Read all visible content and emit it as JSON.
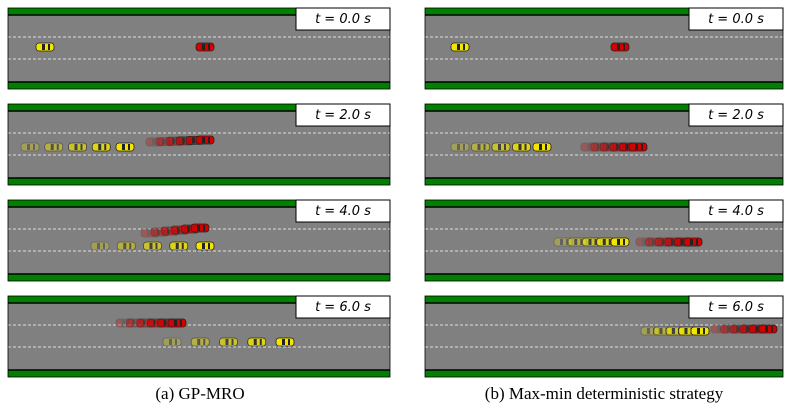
{
  "figure": {
    "columns": [
      {
        "frames": [
          "t = 0.0 s",
          "t = 2.0 s",
          "t = 4.0 s",
          "t = 6.0 s"
        ],
        "caption": "(a) GP-MRO"
      },
      {
        "frames": [
          "t = 0.0 s",
          "t = 2.0 s",
          "t = 4.0 s",
          "t = 6.0 s"
        ],
        "caption": "(b) Max-min deterministic strategy"
      }
    ]
  }
}
